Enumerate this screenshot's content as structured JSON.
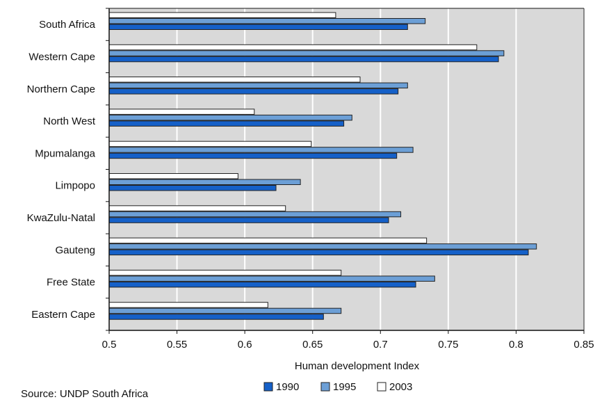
{
  "chart_data": {
    "type": "bar",
    "orientation": "horizontal",
    "categories": [
      "South Africa",
      "Western Cape",
      "Northern Cape",
      "North West",
      "Mpumalanga",
      "Limpopo",
      "KwaZulu-Natal",
      "Gauteng",
      "Free State",
      "Eastern Cape"
    ],
    "series": [
      {
        "name": "2003",
        "color": "#ffffff",
        "values": [
          0.667,
          0.771,
          0.685,
          0.607,
          0.649,
          0.595,
          0.63,
          0.734,
          0.671,
          0.617
        ]
      },
      {
        "name": "1995",
        "color": "#6c9fd6",
        "values": [
          0.733,
          0.791,
          0.72,
          0.679,
          0.724,
          0.641,
          0.715,
          0.815,
          0.74,
          0.671
        ]
      },
      {
        "name": "1990",
        "color": "#1560c8",
        "values": [
          0.72,
          0.787,
          0.713,
          0.673,
          0.712,
          0.623,
          0.706,
          0.809,
          0.726,
          0.658
        ]
      }
    ],
    "legend_order": [
      "1990",
      "1995",
      "2003"
    ],
    "xlabel": "Human development Index",
    "xlim": [
      0.5,
      0.85
    ],
    "xticks": [
      "0.5",
      "0.55",
      "0.6",
      "0.65",
      "0.7",
      "0.75",
      "0.8",
      "0.85"
    ],
    "grid": true,
    "legend_position": "bottom"
  },
  "source": "Source: UNDP South Africa"
}
